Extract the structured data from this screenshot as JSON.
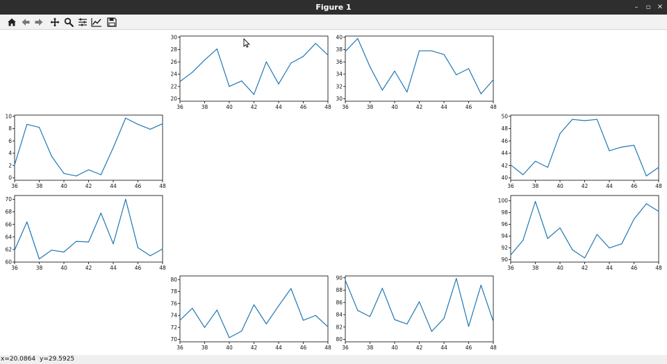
{
  "window": {
    "title": "Figure 1",
    "minimize": "–",
    "maximize": "▫",
    "close": "✕"
  },
  "toolbar": {
    "buttons": [
      {
        "name": "home-icon"
      },
      {
        "name": "back-arrow-icon"
      },
      {
        "name": "forward-arrow-icon"
      },
      {
        "name": "pan-icon"
      },
      {
        "name": "zoom-icon"
      },
      {
        "name": "subplots-config-icon"
      },
      {
        "name": "edit-axis-icon"
      },
      {
        "name": "save-icon"
      }
    ]
  },
  "status": {
    "x_readout": "x=20.0864",
    "y_readout": "y=29.5925"
  },
  "colors": {
    "line": "#1f77b4",
    "titlebar": "#2e2e2e",
    "toolbar": "#f2f2f2"
  },
  "chart_data": [
    {
      "type": "line",
      "position": "top-left-center",
      "x": [
        36,
        37,
        38,
        39,
        40,
        41,
        42,
        43,
        44,
        45,
        46,
        47,
        48
      ],
      "xlim": [
        36,
        48
      ],
      "ylim": [
        19.6,
        30.2
      ],
      "xticks": [
        "36",
        "38",
        "40",
        "42",
        "44",
        "46",
        "48"
      ],
      "yticks": [
        "20",
        "22",
        "24",
        "26",
        "28",
        "30"
      ],
      "values": [
        22.8,
        24.3,
        26.3,
        28.1,
        22.0,
        22.9,
        20.7,
        26.0,
        22.4,
        25.8,
        26.9,
        29.0,
        27.1
      ]
    },
    {
      "type": "line",
      "position": "top-right-center",
      "x": [
        36,
        37,
        38,
        39,
        40,
        41,
        42,
        43,
        44,
        45,
        46,
        47,
        48
      ],
      "xlim": [
        36,
        48
      ],
      "ylim": [
        29.6,
        40.2
      ],
      "xticks": [
        "36",
        "38",
        "40",
        "42",
        "44",
        "46",
        "48"
      ],
      "yticks": [
        "30",
        "32",
        "34",
        "36",
        "38",
        "40"
      ],
      "values": [
        37.7,
        39.8,
        35.2,
        31.4,
        34.5,
        31.1,
        37.8,
        37.8,
        37.2,
        33.9,
        34.9,
        30.8,
        33.1
      ]
    },
    {
      "type": "line",
      "position": "middle-left-upper",
      "x": [
        36,
        37,
        38,
        39,
        40,
        41,
        42,
        43,
        44,
        45,
        46,
        47,
        48
      ],
      "xlim": [
        36,
        48
      ],
      "ylim": [
        -0.4,
        10.2
      ],
      "xticks": [
        "36",
        "38",
        "40",
        "42",
        "44",
        "46",
        "48"
      ],
      "yticks": [
        "0",
        "2",
        "4",
        "6",
        "8",
        "10"
      ],
      "values": [
        2.1,
        8.7,
        8.2,
        3.5,
        0.7,
        0.3,
        1.3,
        0.5,
        4.9,
        9.7,
        8.7,
        7.9,
        8.8
      ]
    },
    {
      "type": "line",
      "position": "middle-right-upper",
      "x": [
        36,
        37,
        38,
        39,
        40,
        41,
        42,
        43,
        44,
        45,
        46,
        47,
        48
      ],
      "xlim": [
        36,
        48
      ],
      "ylim": [
        39.6,
        50.2
      ],
      "xticks": [
        "36",
        "38",
        "40",
        "42",
        "44",
        "46",
        "48"
      ],
      "yticks": [
        "40",
        "42",
        "44",
        "46",
        "48",
        "50"
      ],
      "values": [
        42.1,
        40.5,
        42.7,
        41.7,
        47.2,
        49.5,
        49.3,
        49.5,
        44.4,
        45.0,
        45.3,
        40.3,
        41.7
      ]
    },
    {
      "type": "line",
      "position": "middle-left-lower",
      "x": [
        36,
        37,
        38,
        39,
        40,
        41,
        42,
        43,
        44,
        45,
        46,
        47,
        48
      ],
      "xlim": [
        36,
        48
      ],
      "ylim": [
        60.0,
        70.6
      ],
      "xticks": [
        "36",
        "38",
        "40",
        "42",
        "44",
        "46",
        "48"
      ],
      "yticks": [
        "60",
        "62",
        "64",
        "66",
        "68",
        "70"
      ],
      "values": [
        61.9,
        66.4,
        60.5,
        61.9,
        61.6,
        63.3,
        63.2,
        67.8,
        62.9,
        70.0,
        62.3,
        61.0,
        62.1
      ]
    },
    {
      "type": "line",
      "position": "middle-right-lower",
      "x": [
        36,
        37,
        38,
        39,
        40,
        41,
        42,
        43,
        44,
        45,
        46,
        47,
        48
      ],
      "xlim": [
        36,
        48
      ],
      "ylim": [
        89.6,
        100.9
      ],
      "xticks": [
        "36",
        "38",
        "40",
        "42",
        "44",
        "46",
        "48"
      ],
      "yticks": [
        "90",
        "92",
        "94",
        "96",
        "98",
        "100"
      ],
      "values": [
        90.8,
        93.3,
        99.9,
        93.6,
        95.4,
        91.7,
        90.3,
        94.3,
        92.0,
        92.7,
        96.9,
        99.5,
        98.2
      ]
    },
    {
      "type": "line",
      "position": "bottom-left-center",
      "x": [
        36,
        37,
        38,
        39,
        40,
        41,
        42,
        43,
        44,
        45,
        46,
        47,
        48
      ],
      "xlim": [
        36,
        48
      ],
      "ylim": [
        69.6,
        80.6
      ],
      "xticks": [
        "36",
        "38",
        "40",
        "42",
        "44",
        "46",
        "48"
      ],
      "yticks": [
        "70",
        "72",
        "74",
        "76",
        "78",
        "80"
      ],
      "values": [
        73.2,
        75.2,
        72.0,
        74.9,
        70.3,
        71.4,
        75.8,
        72.6,
        75.6,
        78.5,
        73.2,
        74.0,
        72.1
      ]
    },
    {
      "type": "line",
      "position": "bottom-right-center",
      "x": [
        36,
        37,
        38,
        39,
        40,
        41,
        42,
        43,
        44,
        45,
        46,
        47,
        48
      ],
      "xlim": [
        36,
        48
      ],
      "ylim": [
        79.6,
        90.3
      ],
      "xticks": [
        "36",
        "38",
        "40",
        "42",
        "44",
        "46",
        "48"
      ],
      "yticks": [
        "80",
        "82",
        "84",
        "86",
        "88",
        "90"
      ],
      "values": [
        89.6,
        84.7,
        83.7,
        88.3,
        83.2,
        82.5,
        86.1,
        81.3,
        83.4,
        89.9,
        82.1,
        88.8,
        82.9
      ]
    }
  ]
}
